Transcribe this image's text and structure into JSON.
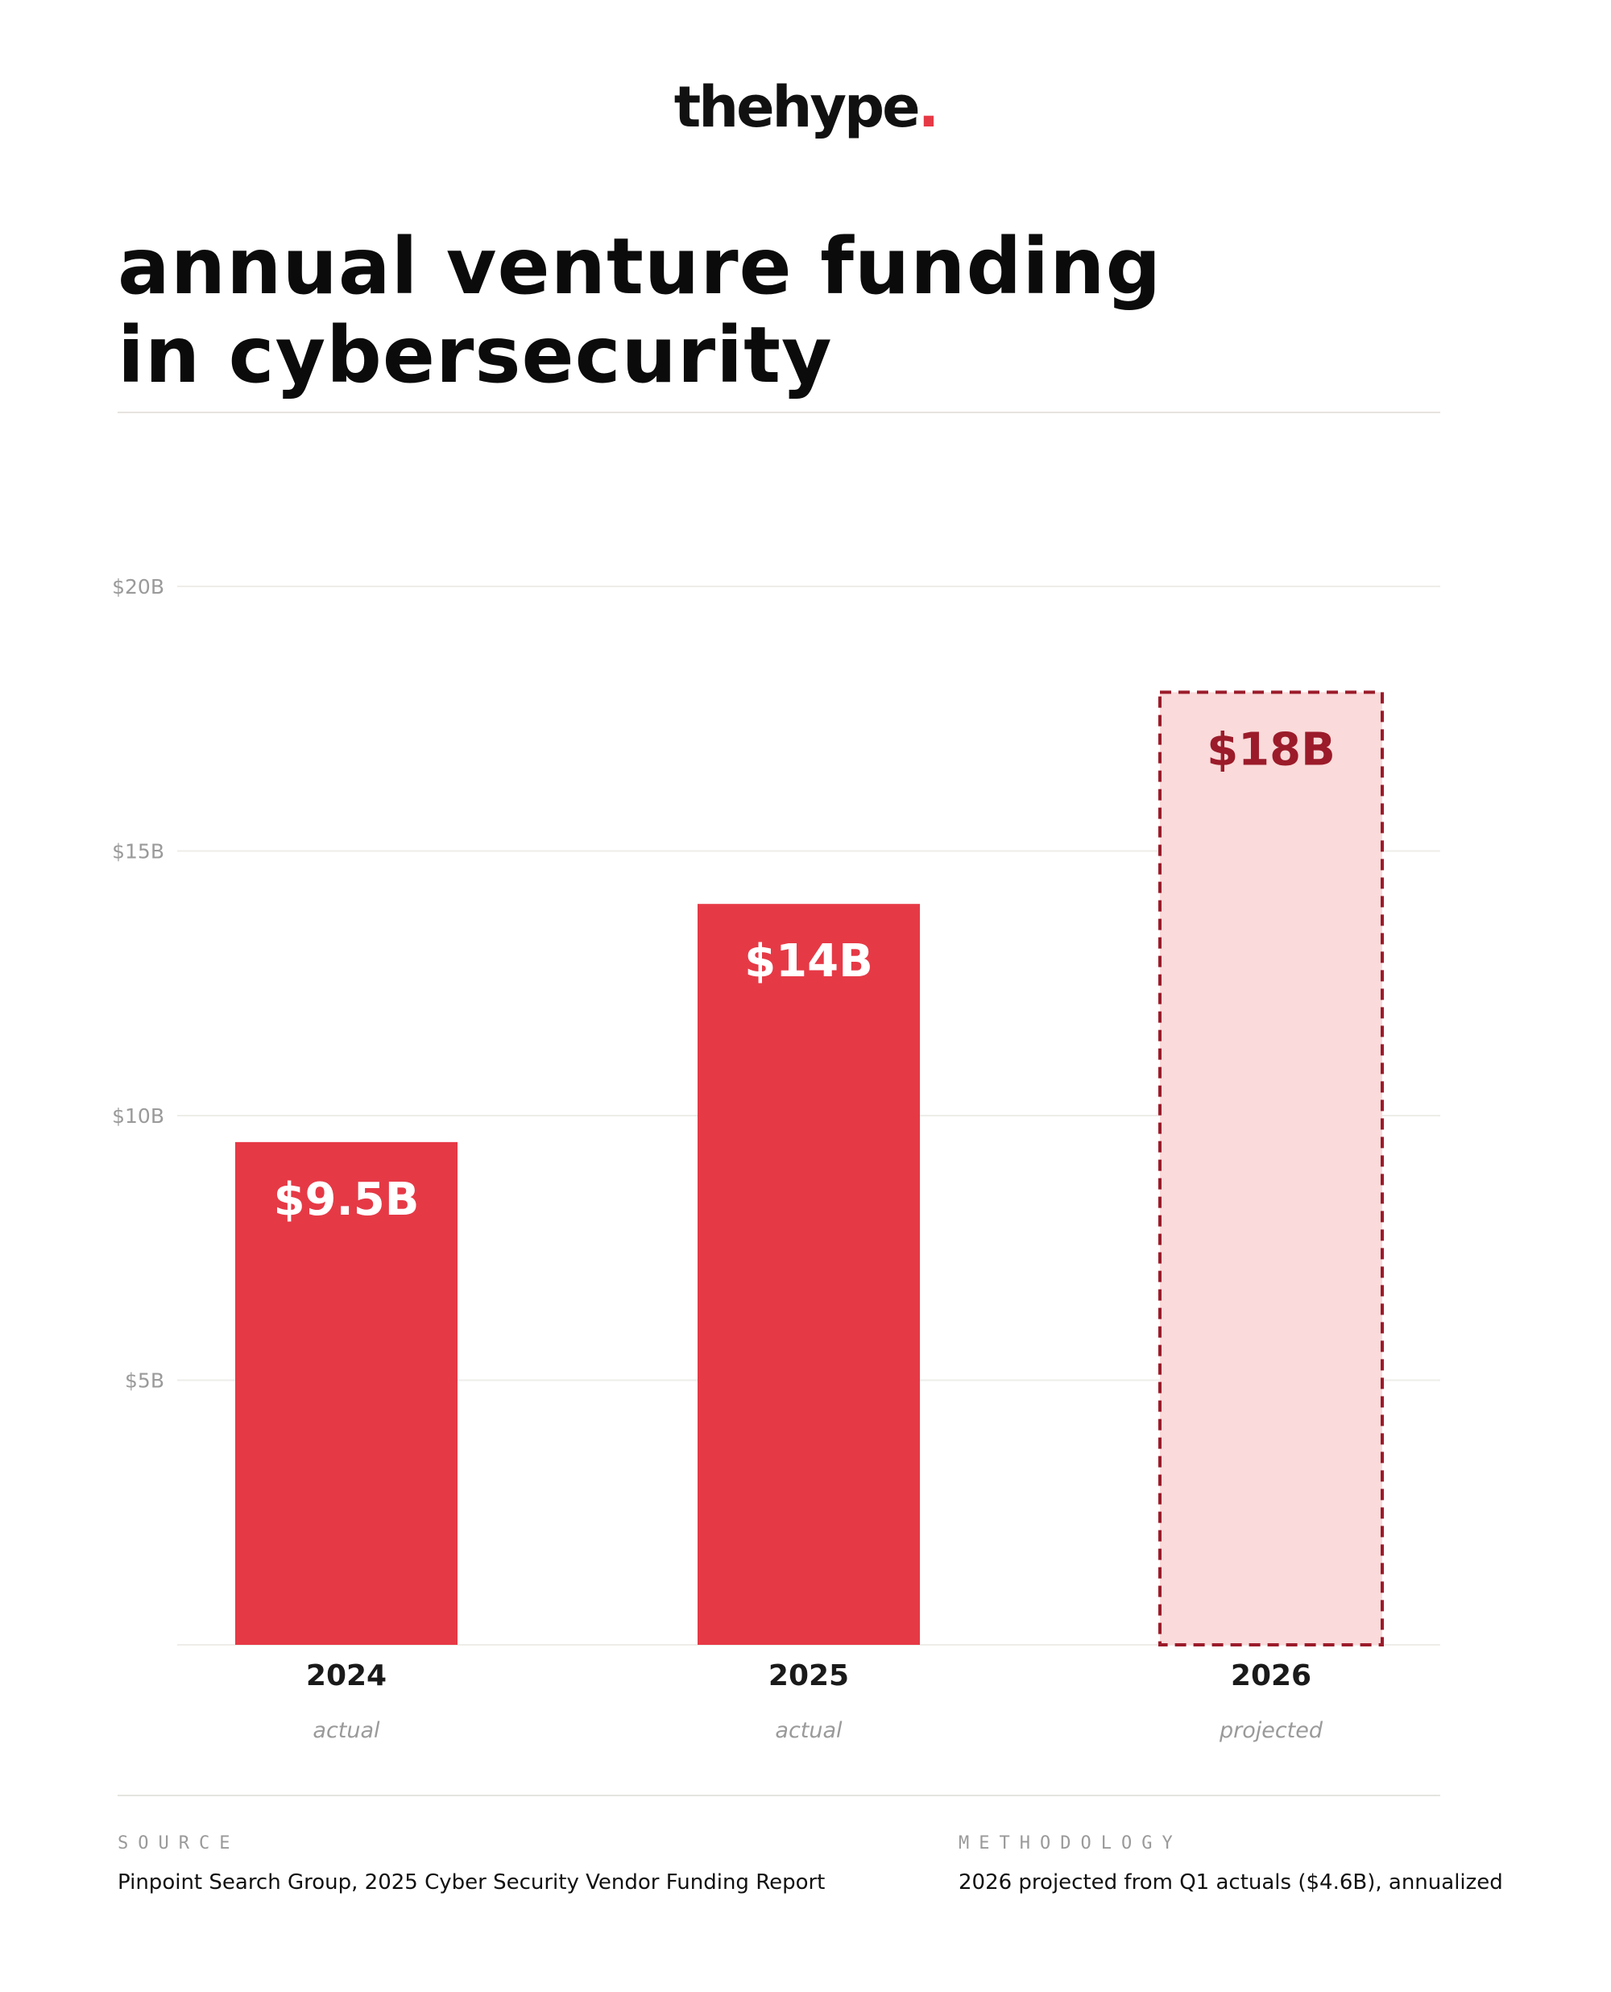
{
  "brand": {
    "name": "thehype",
    "dot": ".",
    "accent_color": "#e63946"
  },
  "header": {
    "title_line1": "annual venture funding",
    "title_line2": "in cybersecurity"
  },
  "chart_data": {
    "type": "bar",
    "categories": [
      "2024",
      "2025",
      "2026"
    ],
    "values": [
      9.5,
      14,
      18
    ],
    "value_labels": [
      "$9.5B",
      "$14B",
      "$18B"
    ],
    "category_sublabels": [
      "actual",
      "actual",
      "projected"
    ],
    "projected": [
      false,
      false,
      true
    ],
    "yticks": [
      5,
      10,
      15,
      20
    ],
    "ytick_labels": [
      "$5B",
      "$10B",
      "$15B",
      "$20B"
    ],
    "ylim": [
      0,
      20
    ],
    "grid": true,
    "colors": {
      "actual_fill": "#e63946",
      "actual_label": "#ffffff",
      "projected_fill": "#fadada",
      "projected_stroke": "#9b1b2a",
      "projected_label": "#9b1b2a",
      "grid": "#eeede9",
      "tick_label": "#9a9a9a"
    }
  },
  "footer": {
    "source_label": "SOURCE",
    "source_text": "Pinpoint Search Group, 2025 Cyber Security Vendor Funding Report",
    "methodology_label": "METHODOLOGY",
    "methodology_text": "2026 projected from Q1 actuals ($4.6B), annualized"
  }
}
